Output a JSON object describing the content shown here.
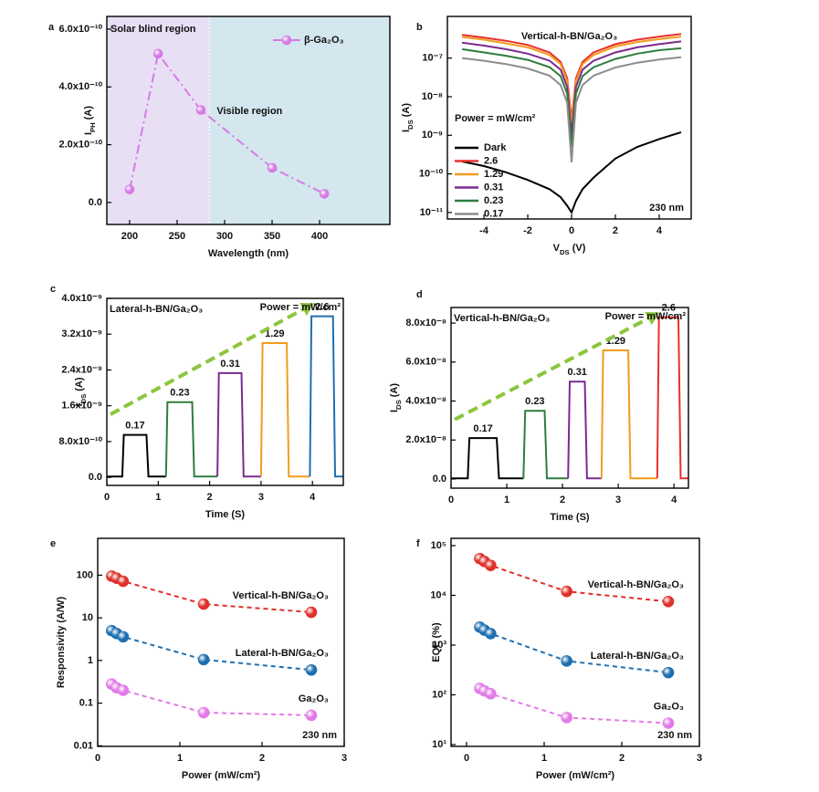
{
  "chart_data": [
    {
      "type": "line",
      "panel": "a",
      "xlabel": "Wavelength (nm)",
      "ylabel": [
        "I",
        "PH",
        " (A)"
      ],
      "xlim": [
        176,
        474
      ],
      "ylim": [
        -7.6e-11,
        6.44e-10
      ],
      "xticks": [
        200,
        250,
        300,
        350,
        400
      ],
      "yticks": [
        {
          "value": 0,
          "label": "0.0"
        },
        {
          "value": 2e-10,
          "label": "2.0x10⁻¹⁰"
        },
        {
          "value": 4e-10,
          "label": "4.0x10⁻¹⁰"
        },
        {
          "value": 6e-10,
          "label": "6.0x10⁻¹⁰"
        }
      ],
      "x": [
        200,
        230,
        275,
        350,
        405
      ],
      "series": [
        {
          "name": "β-Ga₂O₃",
          "color": "#d67ae6",
          "values": [
            4.5e-11,
            5.15e-10,
            3.2e-10,
            1.2e-10,
            3e-11
          ]
        }
      ],
      "line_style": "dash-dot",
      "markers": true,
      "legend": "upper right",
      "regions": [
        {
          "label": "Solar blind region",
          "color": "#e8dff4",
          "text_color": "#d86ee6"
        },
        {
          "label": "Visible region",
          "color": "#d4e7ef",
          "text_color": "#1f6fb0"
        }
      ],
      "region_split": 284
    },
    {
      "type": "line",
      "panel": "b",
      "title": "Vertical-h-BN/Ga₂O₃",
      "title_color": "#e8302a",
      "legend_title": "Power = mW/cm²",
      "note": "230 nm",
      "xlabel": [
        "V",
        "DS",
        " (V)"
      ],
      "ylabel": [
        "I",
        "DS",
        " (A)"
      ],
      "ylog": true,
      "xlim": [
        -5.67,
        5.46
      ],
      "ylim": [
        6.8e-12,
        1.2e-06
      ],
      "xticks": [
        -4,
        -2,
        0,
        2,
        4
      ],
      "yticks": [
        {
          "value": 1e-11,
          "label": "10⁻¹¹"
        },
        {
          "value": 1e-10,
          "label": "10⁻¹⁰"
        },
        {
          "value": 1e-09,
          "label": "10⁻⁹"
        },
        {
          "value": 1e-08,
          "label": "10⁻⁸"
        },
        {
          "value": 1e-07,
          "label": "10⁻⁷"
        }
      ],
      "x": [
        -5,
        -4,
        -3,
        -2,
        -1,
        -0.5,
        -0.2,
        0,
        0.2,
        0.5,
        1,
        2,
        3,
        4,
        5
      ],
      "series": [
        {
          "name": "Dark",
          "color": "#000000",
          "values": [
            2.1e-10,
            1.6e-10,
            1.1e-10,
            7e-11,
            4e-11,
            2.5e-11,
            1.5e-11,
            1e-11,
            2e-11,
            4e-11,
            8e-11,
            2.5e-10,
            5e-10,
            8e-10,
            1.2e-09
          ]
        },
        {
          "name": "2.6",
          "color": "#e8302a",
          "values": [
            4e-07,
            3.4e-07,
            2.8e-07,
            2.2e-07,
            1.4e-07,
            8e-08,
            3e-08,
            2.5e-09,
            3e-08,
            8e-08,
            1.4e-07,
            2.3e-07,
            3e-07,
            3.6e-07,
            4.2e-07
          ]
        },
        {
          "name": "1.29",
          "color": "#f39c1e",
          "values": [
            3.5e-07,
            3e-07,
            2.4e-07,
            1.9e-07,
            1.2e-07,
            7e-08,
            2.5e-08,
            1.8e-09,
            2.5e-08,
            7e-08,
            1.2e-07,
            2e-07,
            2.6e-07,
            3.1e-07,
            3.6e-07
          ]
        },
        {
          "name": "0.31",
          "color": "#7b2a8f",
          "values": [
            2.5e-07,
            2.1e-07,
            1.7e-07,
            1.3e-07,
            8.5e-08,
            5e-08,
            1.8e-08,
            1e-09,
            1.8e-08,
            5e-08,
            8.5e-08,
            1.4e-07,
            1.9e-07,
            2.3e-07,
            2.7e-07
          ]
        },
        {
          "name": "0.23",
          "color": "#2e7d3e",
          "values": [
            1.7e-07,
            1.4e-07,
            1.15e-07,
            9e-08,
            5.8e-08,
            3.4e-08,
            1.2e-08,
            5e-10,
            1.2e-08,
            3.4e-08,
            5.8e-08,
            9.5e-08,
            1.3e-07,
            1.6e-07,
            1.8e-07
          ]
        },
        {
          "name": "0.17",
          "color": "#8c8c8c",
          "values": [
            1e-07,
            8.5e-08,
            7e-08,
            5.4e-08,
            3.5e-08,
            2e-08,
            7e-09,
            2e-10,
            7e-09,
            2e-08,
            3.5e-08,
            5.7e-08,
            7.6e-08,
            9.2e-08,
            1.05e-07
          ]
        }
      ],
      "line_style": "solid",
      "markers": false,
      "legend": "left"
    },
    {
      "type": "line",
      "panel": "c",
      "title": "Lateral-h-BN/Ga₂O₃",
      "title_color": "#1f6fb0",
      "unit_note": "Power = mW/cm²",
      "xlabel": "Time (S)",
      "ylabel": [
        "I",
        "DS",
        " (A)"
      ],
      "xlim": [
        0,
        4.6
      ],
      "ylim": [
        -1.8e-10,
        4e-09
      ],
      "xticks": [
        0,
        1,
        2,
        3,
        4
      ],
      "yticks": [
        {
          "value": 0,
          "label": "0.0"
        },
        {
          "value": 8e-10,
          "label": "8.0x10⁻¹⁰"
        },
        {
          "value": 1.6e-09,
          "label": "1.6x10⁻⁹"
        },
        {
          "value": 2.4e-09,
          "label": "2.4x10⁻⁹"
        },
        {
          "value": 3.2e-09,
          "label": "3.2x10⁻⁹"
        },
        {
          "value": 4e-09,
          "label": "4.0x10⁻⁹"
        }
      ],
      "series": [
        {
          "name": "0.17",
          "color": "#000000",
          "x": [
            0,
            0.3,
            0.33,
            0.77,
            0.81,
            1.15
          ],
          "values": [
            2e-11,
            2e-11,
            9.5e-10,
            9.5e-10,
            2e-11,
            2e-11
          ]
        },
        {
          "name": "0.23",
          "color": "#2e7d3e",
          "x": [
            1.15,
            1.18,
            1.66,
            1.7,
            2.15
          ],
          "values": [
            2e-11,
            1.68e-09,
            1.68e-09,
            2e-11,
            2e-11
          ]
        },
        {
          "name": "0.31",
          "color": "#7b2a8f",
          "x": [
            2.15,
            2.18,
            2.62,
            2.66,
            3.0
          ],
          "values": [
            2e-11,
            2.33e-09,
            2.33e-09,
            2e-11,
            2e-11
          ]
        },
        {
          "name": "1.29",
          "color": "#f39c1e",
          "x": [
            3.0,
            3.03,
            3.5,
            3.54,
            3.95
          ],
          "values": [
            2e-11,
            3e-09,
            3e-09,
            2e-11,
            2e-11
          ]
        },
        {
          "name": "2.6",
          "color": "#1f6fb0",
          "x": [
            3.95,
            3.98,
            4.4,
            4.44,
            4.6
          ],
          "values": [
            2e-11,
            3.6e-09,
            3.6e-09,
            2e-11,
            2e-11
          ]
        }
      ],
      "line_style": "solid",
      "markers": false,
      "legend": "peak",
      "trend_arrow": true,
      "arrow_color": "#8cc63f"
    },
    {
      "type": "line",
      "panel": "d",
      "title": "Vertical-h-BN/Ga₂O₃",
      "title_color": "#e8302a",
      "unit_note": "Power = mW/cm²",
      "xlabel": "Time (S)",
      "ylabel": [
        "I",
        "DS",
        " (A)"
      ],
      "xlim": [
        0,
        4.26
      ],
      "ylim": [
        -4.7e-09,
        8.8e-08
      ],
      "xticks": [
        0,
        1,
        2,
        3,
        4
      ],
      "yticks": [
        {
          "value": 0,
          "label": "0.0"
        },
        {
          "value": 2e-08,
          "label": "2.0x10⁻⁸"
        },
        {
          "value": 4e-08,
          "label": "4.0x10⁻⁸"
        },
        {
          "value": 6e-08,
          "label": "6.0x10⁻⁸"
        },
        {
          "value": 8e-08,
          "label": "8.0x10⁻⁸"
        }
      ],
      "series": [
        {
          "name": "0.17",
          "color": "#000000",
          "x": [
            0,
            0.3,
            0.33,
            0.82,
            0.86,
            1.3
          ],
          "values": [
            3e-10,
            3e-10,
            2.1e-08,
            2.1e-08,
            3e-10,
            3e-10
          ]
        },
        {
          "name": "0.23",
          "color": "#2e7d3e",
          "x": [
            1.3,
            1.33,
            1.68,
            1.72,
            2.1
          ],
          "values": [
            3e-10,
            3.5e-08,
            3.5e-08,
            3e-10,
            3e-10
          ]
        },
        {
          "name": "0.31",
          "color": "#7b2a8f",
          "x": [
            2.1,
            2.13,
            2.4,
            2.44,
            2.7
          ],
          "values": [
            3e-10,
            5e-08,
            5e-08,
            3e-10,
            3e-10
          ]
        },
        {
          "name": "1.29",
          "color": "#f39c1e",
          "x": [
            2.7,
            2.73,
            3.18,
            3.22,
            3.7
          ],
          "values": [
            3e-10,
            6.6e-08,
            6.6e-08,
            3e-10,
            3e-10
          ]
        },
        {
          "name": "2.6",
          "color": "#e8302a",
          "x": [
            3.7,
            3.73,
            4.08,
            4.12,
            4.26
          ],
          "values": [
            3e-10,
            8.3e-08,
            8.3e-08,
            3e-10,
            3e-10
          ]
        }
      ],
      "line_style": "solid",
      "markers": false,
      "legend": "peak",
      "trend_arrow": true,
      "arrow_color": "#8cc63f"
    },
    {
      "type": "line",
      "panel": "e",
      "note": "230 nm",
      "xlabel": "Power (mW/cm²)",
      "ylabel": "Responsivity (A/W)",
      "ylog": true,
      "xlim": [
        0,
        3
      ],
      "ylim": [
        0.0097,
        730
      ],
      "xticks": [
        0,
        1,
        2,
        3
      ],
      "yticks": [
        0.01,
        0.1,
        1,
        10,
        100
      ],
      "x": [
        0.17,
        0.23,
        0.31,
        1.29,
        2.6
      ],
      "series": [
        {
          "name": "Vertical-h-BN/Ga₂O₃",
          "color": "#e0302a",
          "values": [
            95,
            85,
            72,
            21,
            13.5
          ]
        },
        {
          "name": "Lateral-h-BN/Ga₂O₃",
          "color": "#1f6fb0",
          "values": [
            5,
            4.3,
            3.6,
            1.05,
            0.6
          ]
        },
        {
          "name": "Ga₂O₃",
          "color": "#e27ae8",
          "values": [
            0.28,
            0.23,
            0.2,
            0.06,
            0.052
          ]
        }
      ],
      "line_style": "dash",
      "markers": true,
      "legend": "curve-end"
    },
    {
      "type": "line",
      "panel": "f",
      "note": "230 nm",
      "xlabel": "Power (mW/cm²)",
      "ylabel": "EQE (%)",
      "ylog": true,
      "xlim": [
        -0.2,
        3
      ],
      "ylim": [
        9.2,
        140000
      ],
      "xticks": [
        0,
        1,
        2,
        3
      ],
      "yticks": [
        {
          "value": 10,
          "label": "10¹"
        },
        {
          "value": 100,
          "label": "10²"
        },
        {
          "value": 1000,
          "label": "10³"
        },
        {
          "value": 10000,
          "label": "10⁴"
        },
        {
          "value": 100000,
          "label": "10⁵"
        }
      ],
      "x": [
        0.17,
        0.23,
        0.31,
        1.29,
        2.6
      ],
      "series": [
        {
          "name": "Vertical-h-BN/Ga₂O₃",
          "color": "#e0302a",
          "values": [
            55000,
            48000,
            40000,
            12000,
            7500
          ]
        },
        {
          "name": "Lateral-h-BN/Ga₂O₃",
          "color": "#1f6fb0",
          "values": [
            2300,
            2000,
            1700,
            480,
            280
          ]
        },
        {
          "name": "Ga₂O₃",
          "color": "#e27ae8",
          "values": [
            135,
            120,
            105,
            35,
            27
          ]
        }
      ],
      "line_style": "dash",
      "markers": true,
      "legend": "curve-end"
    }
  ]
}
